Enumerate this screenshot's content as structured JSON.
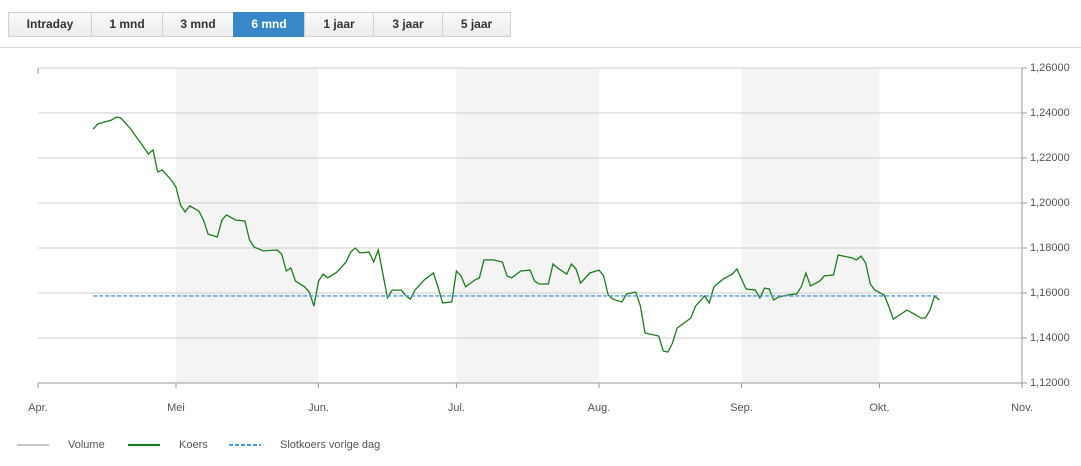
{
  "tabs": {
    "items": [
      "Intraday",
      "1 mnd",
      "3 mnd",
      "6 mnd",
      "1 jaar",
      "3 jaar",
      "5 jaar"
    ],
    "active": 3
  },
  "chart_data": {
    "type": "line",
    "xlim": [
      0,
      214
    ],
    "xticks": [
      {
        "value": 0,
        "label": "Apr."
      },
      {
        "value": 30,
        "label": "Mei"
      },
      {
        "value": 61,
        "label": "Jun."
      },
      {
        "value": 91,
        "label": "Jul."
      },
      {
        "value": 122,
        "label": "Aug."
      },
      {
        "value": 153,
        "label": "Sep."
      },
      {
        "value": 183,
        "label": "Okt."
      },
      {
        "value": 214,
        "label": "Nov."
      }
    ],
    "ylim": [
      1.12,
      1.26
    ],
    "yticks": [
      {
        "value": 1.12,
        "label": "1,12000"
      },
      {
        "value": 1.14,
        "label": "1,14000"
      },
      {
        "value": 1.16,
        "label": "1,16000"
      },
      {
        "value": 1.18,
        "label": "1,18000"
      },
      {
        "value": 1.2,
        "label": "1,20000"
      },
      {
        "value": 1.22,
        "label": "1,22000"
      },
      {
        "value": 1.24,
        "label": "1,24000"
      },
      {
        "value": 1.26,
        "label": "1,26000"
      }
    ],
    "grid": true,
    "x": [
      12,
      13,
      16,
      17,
      18,
      20,
      22,
      24,
      25,
      26,
      27,
      29,
      30,
      31,
      32,
      33,
      35,
      36,
      37,
      39,
      40,
      41,
      43,
      45,
      46,
      47,
      49,
      52,
      53,
      54,
      55,
      56,
      58,
      59,
      60,
      61,
      62,
      63,
      65,
      67,
      68,
      69,
      70,
      72,
      73,
      74,
      76,
      77,
      79,
      80,
      81,
      82,
      84,
      86,
      87,
      88,
      90,
      91,
      92,
      93,
      95,
      96,
      97,
      99,
      101,
      102,
      103,
      105,
      107,
      108,
      109,
      111,
      112,
      113,
      115,
      116,
      117,
      118,
      120,
      122,
      123,
      124,
      125,
      127,
      128,
      130,
      131,
      132,
      135,
      136,
      137,
      138,
      139,
      142,
      143,
      145,
      146,
      147,
      149,
      151,
      152,
      154,
      156,
      157,
      158,
      159,
      160,
      161,
      163,
      165,
      166,
      167,
      168,
      170,
      171,
      173,
      174,
      177,
      178,
      179,
      180,
      181,
      182,
      184,
      185,
      186,
      187,
      189,
      191,
      192,
      193,
      194,
      195,
      196
    ],
    "series": [
      {
        "name": "Volume",
        "color": "#c8c8c8"
      },
      {
        "name": "Koers",
        "color": "#1f7a1f",
        "values": [
          1.2329,
          1.2351,
          1.2369,
          1.2382,
          1.2378,
          1.2333,
          1.2276,
          1.2218,
          1.2236,
          1.2138,
          1.2147,
          1.2102,
          1.2071,
          1.1991,
          1.196,
          1.1987,
          1.1964,
          1.1924,
          1.1862,
          1.1849,
          1.1924,
          1.1947,
          1.1924,
          1.192,
          1.1836,
          1.1804,
          1.1787,
          1.1791,
          1.1773,
          1.1698,
          1.1711,
          1.1653,
          1.1627,
          1.1604,
          1.1542,
          1.1653,
          1.1684,
          1.1667,
          1.1693,
          1.1738,
          1.1782,
          1.18,
          1.1778,
          1.1782,
          1.1738,
          1.1791,
          1.1578,
          1.1613,
          1.1613,
          1.1587,
          1.1573,
          1.1613,
          1.1658,
          1.1689,
          1.1627,
          1.1556,
          1.156,
          1.1698,
          1.1676,
          1.1627,
          1.1658,
          1.1667,
          1.1747,
          1.1747,
          1.1738,
          1.1676,
          1.1667,
          1.1698,
          1.1702,
          1.1653,
          1.164,
          1.164,
          1.1729,
          1.1711,
          1.1684,
          1.1729,
          1.1707,
          1.1644,
          1.1689,
          1.1702,
          1.1676,
          1.1591,
          1.1573,
          1.156,
          1.1596,
          1.1604,
          1.1542,
          1.1422,
          1.1409,
          1.1342,
          1.1338,
          1.1378,
          1.1444,
          1.1489,
          1.1542,
          1.1587,
          1.1556,
          1.1627,
          1.1662,
          1.1684,
          1.1707,
          1.1618,
          1.1613,
          1.1578,
          1.1622,
          1.1618,
          1.1569,
          1.1582,
          1.1591,
          1.1596,
          1.1627,
          1.1689,
          1.1631,
          1.1653,
          1.1676,
          1.168,
          1.1769,
          1.1756,
          1.1747,
          1.1764,
          1.1733,
          1.164,
          1.1613,
          1.1591,
          1.1542,
          1.1484,
          1.1498,
          1.1524,
          1.1502,
          1.1489,
          1.1489,
          1.1524,
          1.1587,
          1.1569
        ]
      },
      {
        "name": "Slotkoers vorige dag",
        "color": "#4a9ad6",
        "value": 1.1587,
        "dashed": true
      }
    ]
  }
}
